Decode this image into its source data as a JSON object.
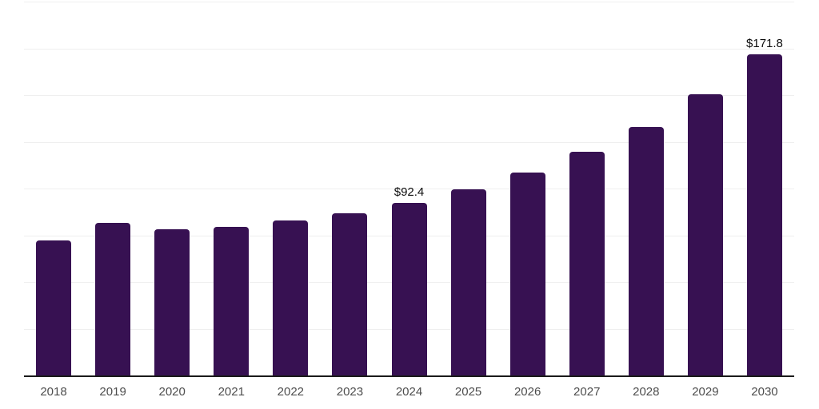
{
  "chart_data": {
    "type": "bar",
    "title": "",
    "xlabel": "",
    "ylabel": "",
    "categories": [
      "2018",
      "2019",
      "2020",
      "2021",
      "2022",
      "2023",
      "2024",
      "2025",
      "2026",
      "2027",
      "2028",
      "2029",
      "2030"
    ],
    "values": [
      72.4,
      81.6,
      78.3,
      79.4,
      82.8,
      86.8,
      92.4,
      99.5,
      108.7,
      119.6,
      133.1,
      150.4,
      171.8
    ],
    "data_labels": [
      {
        "category": "2024",
        "text": "$92.4"
      },
      {
        "category": "2030",
        "text": "$171.8"
      }
    ],
    "ylim": [
      0,
      200
    ],
    "grid_interval": 25,
    "grid": true,
    "y_axis_tick_labels_visible": false,
    "legend_position": "none"
  },
  "colors": {
    "bar": "#371152",
    "grid": "#efefef",
    "axis_line": "#1a1a1a",
    "tick_label": "#4d4d4d",
    "data_label": "#0d0d0d",
    "background": "#ffffff"
  }
}
